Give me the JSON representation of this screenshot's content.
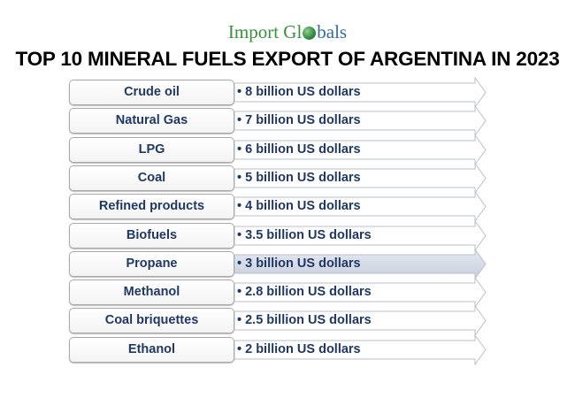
{
  "logo": {
    "text_part1": "Import Gl",
    "text_part2": "bals",
    "full": "Import Globals"
  },
  "title": "TOP 10 MINERAL FUELS EXPORT OF ARGENTINA IN 2023",
  "colors": {
    "text": "#203864",
    "highlight": "#d6dbe8",
    "border": "#a9a9a9"
  },
  "highlighted_item": "Propane",
  "items": [
    {
      "label": "Crude oil",
      "value": "• 8 billion US dollars"
    },
    {
      "label": "Natural Gas",
      "value": "• 7 billion US dollars"
    },
    {
      "label": "LPG",
      "value": "• 6 billion US dollars"
    },
    {
      "label": "Coal",
      "value": "• 5 billion US dollars"
    },
    {
      "label": "Refined products",
      "value": "• 4 billion US dollars"
    },
    {
      "label": "Biofuels",
      "value": "• 3.5 billion US dollars"
    },
    {
      "label": "Propane",
      "value": "• 3 billion US dollars"
    },
    {
      "label": "Methanol",
      "value": "• 2.8 billion US dollars"
    },
    {
      "label": "Coal briquettes",
      "value": "• 2.5 billion US dollars"
    },
    {
      "label": "Ethanol",
      "value": "• 2 billion US dollars"
    }
  ]
}
